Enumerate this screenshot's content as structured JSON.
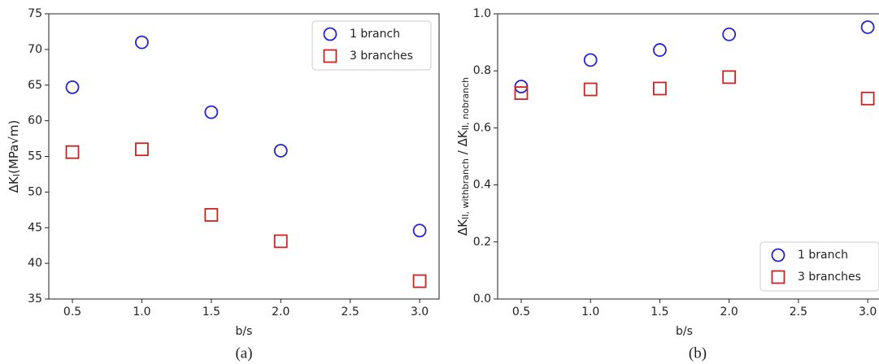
{
  "chart_data": [
    {
      "type": "scatter",
      "caption": "(a)",
      "xlabel": "b/s",
      "ylabel": [
        "ΔK",
        "I",
        "(MPa√m)"
      ],
      "xlim": [
        0.33,
        3.14
      ],
      "ylim": [
        35,
        75
      ],
      "xticks": [
        0.5,
        {
          "value": 1.0,
          "label": "1.0"
        },
        1.5,
        {
          "value": 2.0,
          "label": "2.0"
        },
        2.5,
        {
          "value": 3.0,
          "label": "3.0"
        }
      ],
      "yticks": [
        35,
        40,
        45,
        50,
        55,
        60,
        65,
        70,
        75
      ],
      "legend": "upper right",
      "series": [
        {
          "name": "1 branch",
          "color": "#2424c8",
          "marker": "circle",
          "x": [
            0.5,
            1.0,
            1.5,
            2.0,
            3.0
          ],
          "values": [
            64.7,
            71.0,
            61.2,
            55.8,
            44.6
          ]
        },
        {
          "name": "3 branches",
          "color": "#cc2222",
          "marker": "square",
          "x": [
            0.5,
            1.0,
            1.5,
            2.0,
            3.0
          ],
          "values": [
            55.6,
            56.0,
            46.8,
            43.1,
            37.5
          ]
        }
      ]
    },
    {
      "type": "scatter",
      "caption": "(b)",
      "xlabel": "b/s",
      "ylabel": [
        "ΔK",
        "II, withbranch",
        " / ΔK",
        "II, nobranch"
      ],
      "xlim": [
        0.33,
        3.14
      ],
      "ylim": [
        0,
        1
      ],
      "xticks": [
        0.5,
        {
          "value": 1.0,
          "label": "1.0"
        },
        1.5,
        {
          "value": 2.0,
          "label": "2.0"
        },
        2.5,
        {
          "value": 3.0,
          "label": "3.0"
        }
      ],
      "yticks": [
        {
          "value": 0,
          "label": "0.0"
        },
        0.2,
        0.4,
        0.6,
        0.8,
        {
          "value": 1,
          "label": "1.0"
        }
      ],
      "legend": "lower right",
      "series": [
        {
          "name": "1 branch",
          "color": "#2424c8",
          "marker": "circle",
          "x": [
            0.5,
            1.0,
            1.5,
            2.0,
            3.0
          ],
          "values": [
            0.745,
            0.838,
            0.873,
            0.928,
            0.953
          ]
        },
        {
          "name": "3 branches",
          "color": "#cc2222",
          "marker": "square",
          "x": [
            0.5,
            1.0,
            1.5,
            2.0,
            3.0
          ],
          "values": [
            0.722,
            0.735,
            0.738,
            0.778,
            0.703
          ]
        }
      ]
    }
  ]
}
